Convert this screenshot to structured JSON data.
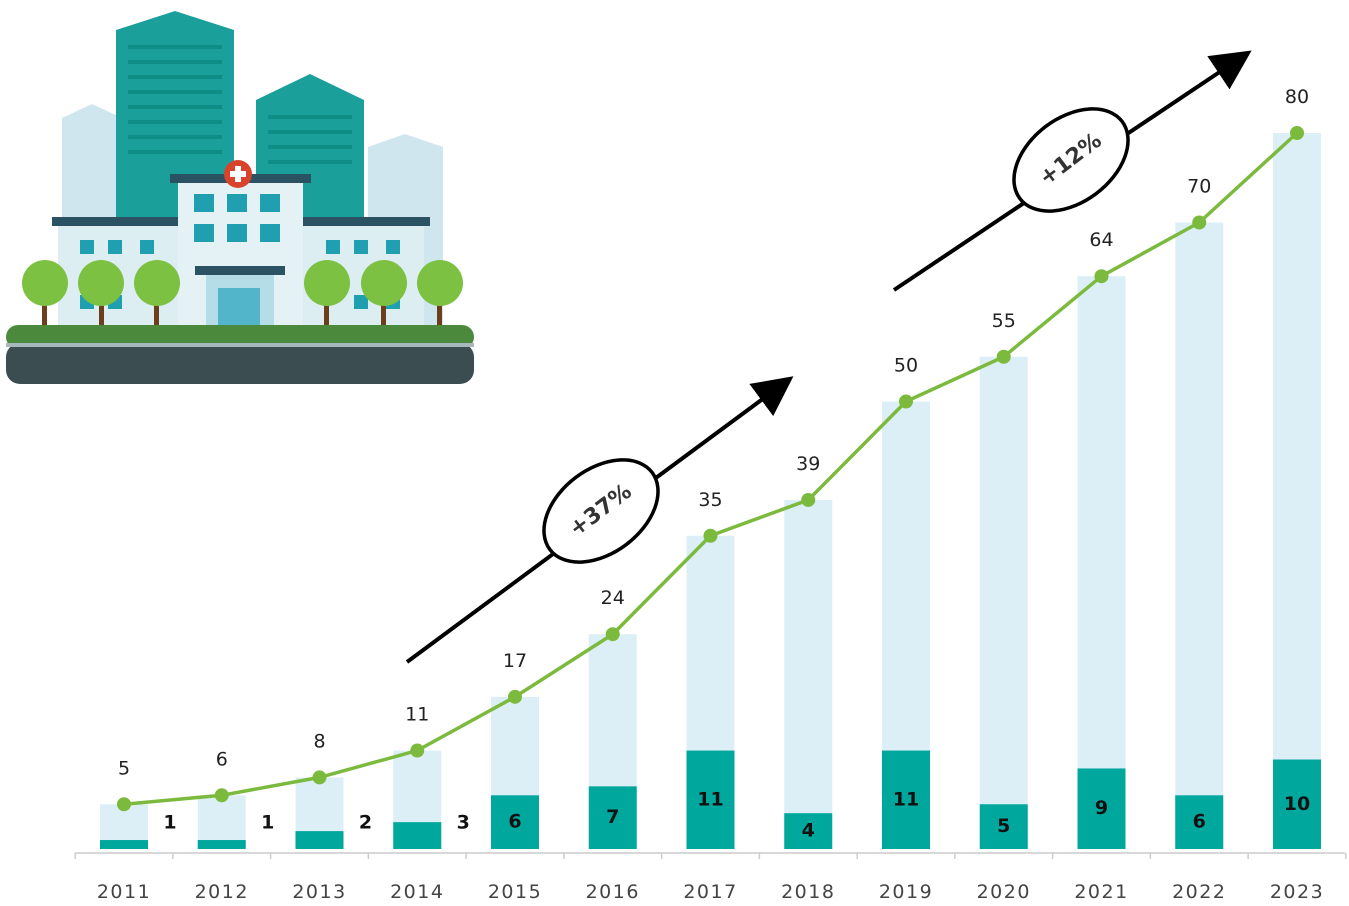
{
  "chart_data": {
    "type": "bar",
    "categories": [
      "2011",
      "2012",
      "2013",
      "2014",
      "2015",
      "2016",
      "2017",
      "2018",
      "2019",
      "2020",
      "2021",
      "2022",
      "2023"
    ],
    "series": [
      {
        "values": [
          5,
          6,
          8,
          11,
          17,
          24,
          35,
          39,
          50,
          55,
          64,
          70,
          80
        ]
      },
      {
        "values": [
          1,
          1,
          2,
          3,
          6,
          7,
          11,
          4,
          11,
          5,
          9,
          6,
          10
        ]
      }
    ],
    "annotations": [
      {
        "text": "+37%"
      },
      {
        "text": "+12%"
      }
    ],
    "colors": {
      "total_bar": "#ddeff6",
      "new_bar": "#00a79d",
      "line": "#7cba3e",
      "arrow": "#000000"
    },
    "grid": false,
    "illustration": "hospital-building"
  }
}
